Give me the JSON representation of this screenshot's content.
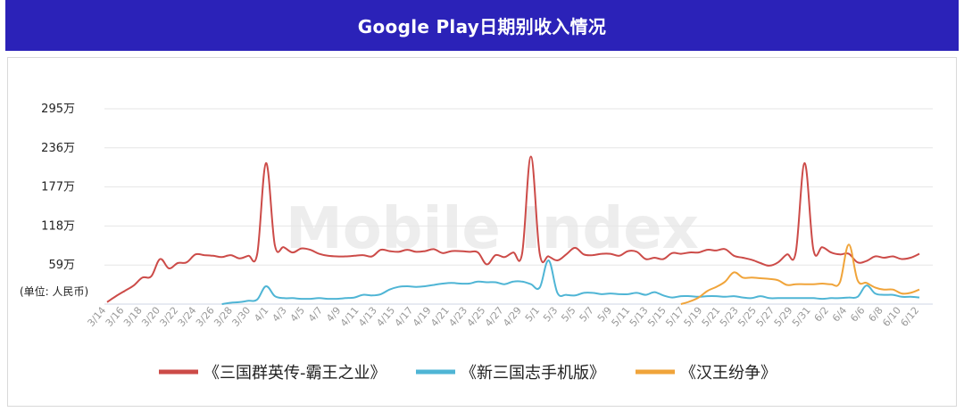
{
  "header": {
    "title": "Google Play日期别收入情况"
  },
  "watermark": "Mobile Index",
  "chart_data": {
    "type": "line",
    "title": "Google Play日期别收入情况",
    "unit_label": "(单位: 人民币)",
    "ylim": [
      0,
      330
    ],
    "yticks": [
      {
        "value": 59,
        "label": "59万"
      },
      {
        "value": 118,
        "label": "118万"
      },
      {
        "value": 177,
        "label": "177万"
      },
      {
        "value": 236,
        "label": "236万"
      },
      {
        "value": 295,
        "label": "295万"
      }
    ],
    "x_labels": [
      "3/14",
      "3/16",
      "3/18",
      "3/20",
      "3/22",
      "3/24",
      "3/26",
      "3/28",
      "3/30",
      "4/1",
      "4/3",
      "4/5",
      "4/7",
      "4/9",
      "4/11",
      "4/13",
      "4/15",
      "4/17",
      "4/19",
      "4/21",
      "4/23",
      "4/25",
      "4/27",
      "4/29",
      "5/1",
      "5/3",
      "5/5",
      "5/7",
      "5/9",
      "5/11",
      "5/13",
      "5/15",
      "5/17",
      "5/19",
      "5/21",
      "5/23",
      "5/25",
      "5/27",
      "5/29",
      "5/31",
      "6/2",
      "6/4",
      "6/6",
      "6/8",
      "6/10",
      "6/12"
    ],
    "legend_position": "bottom",
    "grid": true,
    "series": [
      {
        "name": "《三国群英传-霸王之业》",
        "color": "#cc4b48",
        "values": [
          3,
          12,
          20,
          28,
          40,
          42,
          68,
          54,
          62,
          63,
          75,
          74,
          73,
          71,
          74,
          69,
          73,
          76,
          213,
          89,
          86,
          78,
          84,
          82,
          76,
          73,
          72,
          72,
          73,
          74,
          72,
          82,
          80,
          79,
          82,
          79,
          80,
          83,
          77,
          80,
          80,
          79,
          78,
          60,
          74,
          71,
          78,
          76,
          223,
          76,
          72,
          66,
          75,
          85,
          75,
          74,
          76,
          76,
          73,
          80,
          79,
          68,
          70,
          68,
          77,
          76,
          78,
          78,
          82,
          81,
          83,
          73,
          70,
          67,
          62,
          58,
          63,
          75,
          78,
          213,
          82,
          86,
          78,
          75,
          76,
          63,
          65,
          72,
          70,
          72,
          68,
          70,
          76
        ]
      },
      {
        "name": "《新三国志手机版》",
        "color": "#4fb5d5",
        "values": [
          null,
          null,
          null,
          null,
          null,
          null,
          null,
          null,
          null,
          null,
          null,
          null,
          null,
          null,
          null,
          null,
          null,
          null,
          null,
          null,
          null,
          null,
          null,
          null,
          null,
          null,
          null,
          null,
          null,
          null,
          null,
          null,
          null,
          null,
          null,
          null,
          null,
          null,
          null,
          null,
          null,
          null,
          null,
          null,
          null,
          null,
          null,
          null,
          null,
          null,
          null,
          null,
          null,
          null,
          null,
          null,
          null,
          null,
          null,
          null,
          null,
          null,
          null,
          null,
          null,
          null,
          null,
          null,
          null,
          null,
          null,
          null,
          null,
          null,
          null,
          null,
          null,
          null,
          null,
          null,
          null,
          null,
          null,
          null,
          null,
          null,
          null,
          null,
          null,
          null,
          null,
          null,
          null
        ]
      },
      {
        "name": "《汉王纷争》",
        "color": "#f0a43a",
        "values": [
          null,
          null,
          null,
          null,
          null,
          null,
          null,
          null,
          null,
          null,
          null,
          null,
          null,
          null,
          null,
          null,
          null,
          null,
          null,
          null,
          null,
          null,
          null,
          null,
          null,
          null,
          null,
          null,
          null,
          null,
          null,
          null,
          null,
          null,
          null,
          null,
          null,
          null,
          null,
          null,
          null,
          null,
          null,
          null,
          null,
          null,
          null,
          null,
          null,
          null,
          null,
          null,
          null,
          null,
          null,
          null,
          null,
          null,
          null,
          null,
          null,
          null,
          null,
          null,
          null,
          null,
          null,
          null,
          null,
          null,
          null,
          null,
          null,
          null,
          null,
          null,
          null,
          null,
          null,
          null,
          null,
          null,
          null,
          null,
          null,
          null,
          null,
          null,
          null,
          null,
          null,
          null,
          null
        ]
      }
    ]
  }
}
